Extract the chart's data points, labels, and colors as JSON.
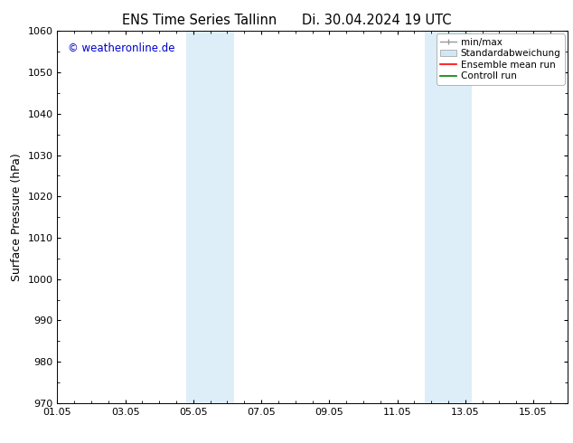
{
  "title_left": "ENS Time Series Tallinn",
  "title_right": "Di. 30.04.2024 19 UTC",
  "ylabel": "Surface Pressure (hPa)",
  "ylim": [
    970,
    1060
  ],
  "yticks": [
    970,
    980,
    990,
    1000,
    1010,
    1020,
    1030,
    1040,
    1050,
    1060
  ],
  "xlim": [
    0,
    15
  ],
  "xtick_labels": [
    "01.05",
    "03.05",
    "05.05",
    "07.05",
    "09.05",
    "11.05",
    "13.05",
    "15.05"
  ],
  "xtick_positions": [
    0,
    2,
    4,
    6,
    8,
    10,
    12,
    14
  ],
  "shaded_bands": [
    {
      "x_start": 3.8,
      "x_end": 5.2
    },
    {
      "x_start": 10.8,
      "x_end": 12.2
    }
  ],
  "shaded_color": "#ddeef8",
  "watermark_text": "© weatheronline.de",
  "watermark_color": "#0000cc",
  "background_color": "#ffffff",
  "legend_minmax_color": "#999999",
  "legend_std_facecolor": "#d0e8f5",
  "legend_std_edgecolor": "#aaaaaa",
  "legend_ens_color": "#ff0000",
  "legend_ctrl_color": "#008000",
  "grid_color": "#cccccc",
  "axis_color": "#000000",
  "font_size_title": 10.5,
  "font_size_axis": 9,
  "font_size_tick": 8,
  "font_size_legend": 7.5,
  "font_size_watermark": 8.5
}
